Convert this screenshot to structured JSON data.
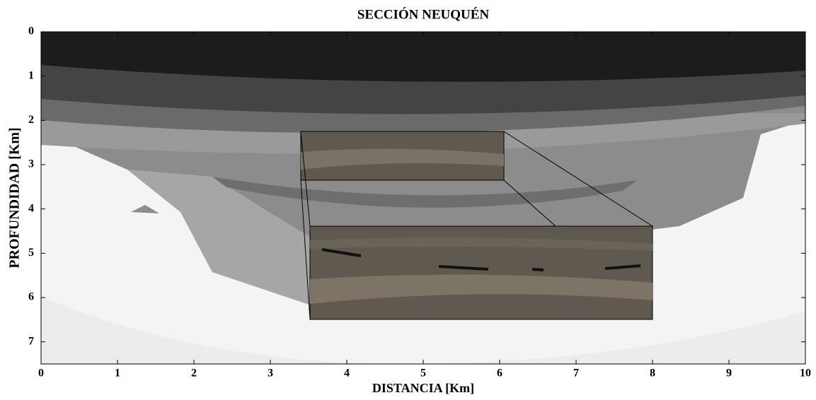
{
  "chart_data": {
    "type": "image",
    "title": "SECCIÓN NEUQUÉN",
    "xlabel": "DISTANCIA [Km]",
    "ylabel": "PROFUNDIDAD [Km]",
    "xlim": [
      0,
      10
    ],
    "xticks": [
      0,
      1,
      2,
      3,
      4,
      5,
      6,
      7,
      8,
      9,
      10
    ],
    "ylim": [
      7.5,
      0
    ],
    "yticks": [
      0,
      1,
      2,
      3,
      4,
      5,
      6,
      7
    ]
  }
}
